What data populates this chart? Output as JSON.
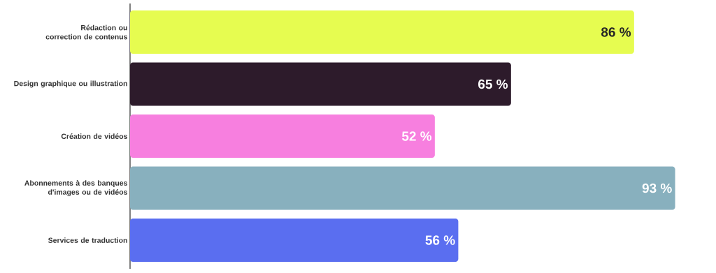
{
  "chart_data": {
    "type": "bar",
    "orientation": "horizontal",
    "categories": [
      "Rédaction ou correction de contenus",
      "Design graphique ou illustration",
      "Création de vidéos",
      "Abonnements à des banques d'images ou de vidéos",
      "Services de traduction"
    ],
    "values": [
      86,
      65,
      52,
      93,
      56
    ],
    "colors": [
      "#e6fc50",
      "#2d1b2b",
      "#f77fdf",
      "#88b0be",
      "#5a6ef0"
    ],
    "value_labels": [
      "86 %",
      "65 %",
      "52 %",
      "93 %",
      "56 %"
    ],
    "tick_labels": "y"
  }
}
